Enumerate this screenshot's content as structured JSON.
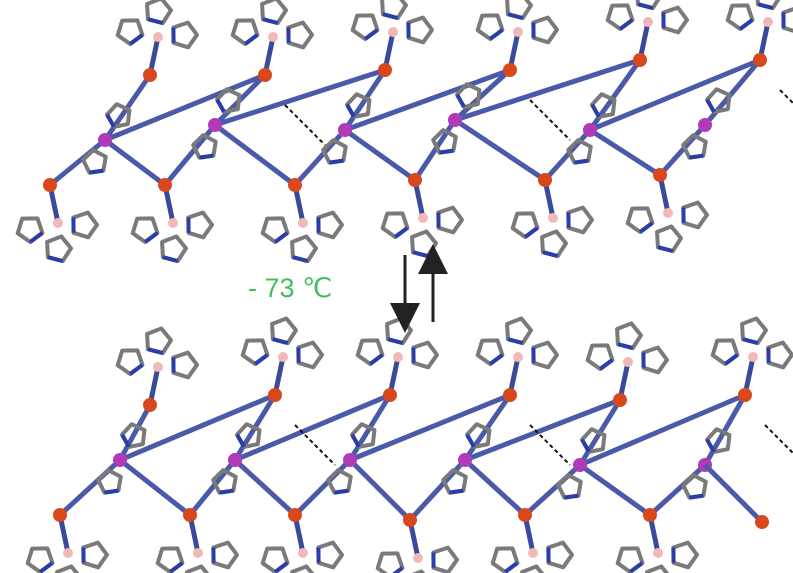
{
  "label": "- 73 ℃"
}
